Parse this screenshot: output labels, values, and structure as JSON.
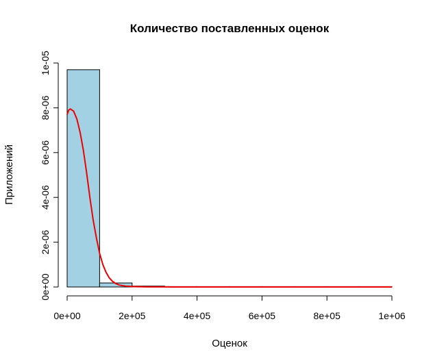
{
  "chart_data": {
    "type": "bar",
    "subtype": "histogram-with-density-curve",
    "title": "Количество поставленных оценок",
    "xlabel": "Оценок",
    "ylabel": "Приложений",
    "xlim": [
      0,
      1000000
    ],
    "ylim": [
      0,
      1e-05
    ],
    "x_ticks": [
      {
        "value": 0,
        "label": "0e+00"
      },
      {
        "value": 200000,
        "label": "2e+05"
      },
      {
        "value": 400000,
        "label": "4e+05"
      },
      {
        "value": 600000,
        "label": "6e+05"
      },
      {
        "value": 800000,
        "label": "8e+05"
      },
      {
        "value": 1000000,
        "label": "1e+06"
      }
    ],
    "y_ticks": [
      {
        "value": 0,
        "label": "0e+00"
      },
      {
        "value": 2e-06,
        "label": "2e-06"
      },
      {
        "value": 4e-06,
        "label": "4e-06"
      },
      {
        "value": 6e-06,
        "label": "6e-06"
      },
      {
        "value": 8e-06,
        "label": "8e-06"
      },
      {
        "value": 1e-05,
        "label": "1e-05"
      }
    ],
    "bins": [
      {
        "x0": 0,
        "x1": 100000,
        "density": 9.7e-06
      },
      {
        "x0": 100000,
        "x1": 200000,
        "density": 1.8e-07
      },
      {
        "x0": 200000,
        "x1": 300000,
        "density": 4e-08
      },
      {
        "x0": 300000,
        "x1": 400000,
        "density": 1.5e-08
      },
      {
        "x0": 400000,
        "x1": 500000,
        "density": 7e-09
      },
      {
        "x0": 500000,
        "x1": 600000,
        "density": 4e-09
      },
      {
        "x0": 600000,
        "x1": 700000,
        "density": 2e-09
      },
      {
        "x0": 700000,
        "x1": 800000,
        "density": 1e-09
      },
      {
        "x0": 800000,
        "x1": 900000,
        "density": 1e-09
      },
      {
        "x0": 900000,
        "x1": 1000000,
        "density": 1e-09
      }
    ],
    "density_curve": {
      "x": [
        0,
        5000,
        10000,
        20000,
        30000,
        40000,
        50000,
        60000,
        70000,
        80000,
        90000,
        100000,
        110000,
        120000,
        130000,
        140000,
        150000,
        160000,
        170000,
        180000,
        190000,
        200000,
        220000,
        250000,
        300000,
        400000,
        500000,
        600000,
        700000,
        800000,
        900000,
        1000000
      ],
      "y": [
        7.7e-06,
        7.9e-06,
        7.95e-06,
        7.85e-06,
        7.5e-06,
        6.9e-06,
        6.1e-06,
        5.1e-06,
        4e-06,
        3e-06,
        2.2e-06,
        1.5e-06,
        1e-06,
        6.5e-07,
        4e-07,
        2.5e-07,
        1.5e-07,
        9e-08,
        6e-08,
        4e-08,
        3e-08,
        2e-08,
        1e-08,
        5e-09,
        2e-09,
        1e-09,
        0,
        0,
        0,
        0,
        0,
        0
      ]
    },
    "colors": {
      "bar_fill": "#a2d1e3",
      "bar_stroke": "#000000",
      "curve": "#ee0000",
      "axis": "#000000"
    },
    "grid": false
  }
}
